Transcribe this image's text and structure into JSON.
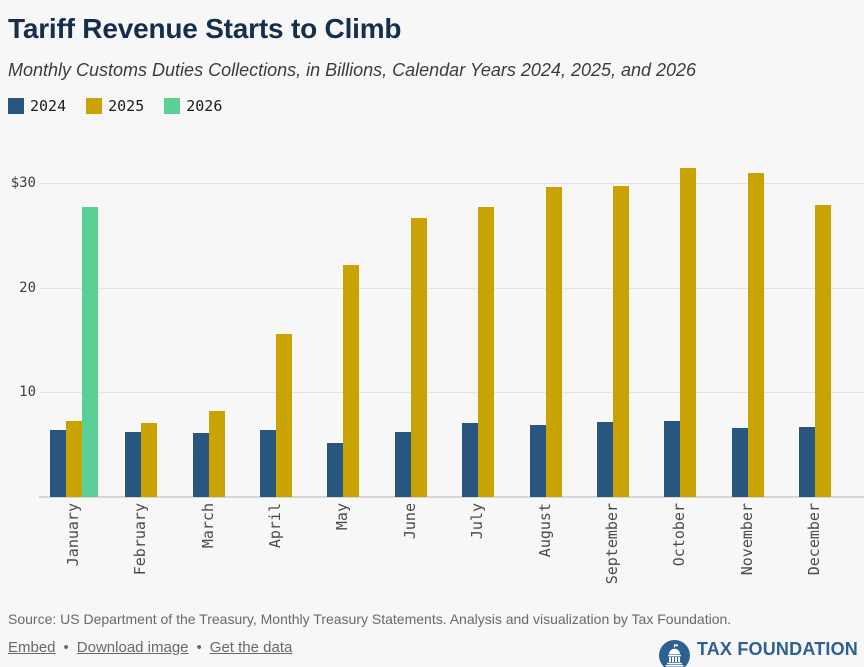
{
  "chart_data": {
    "type": "bar",
    "title": "Tariff Revenue Starts to Climb",
    "subtitle": "Monthly Customs Duties Collections, in Billions, Calendar Years 2024, 2025, and 2026",
    "categories": [
      "January",
      "February",
      "March",
      "April",
      "May",
      "June",
      "July",
      "August",
      "September",
      "October",
      "November",
      "December"
    ],
    "series": [
      {
        "name": "2024",
        "color": "#28567e",
        "values": [
          6.4,
          6.2,
          6.1,
          6.4,
          5.2,
          6.2,
          7.1,
          6.9,
          7.2,
          7.3,
          6.6,
          6.7
        ]
      },
      {
        "name": "2025",
        "color": "#c9a203",
        "values": [
          7.3,
          7.1,
          8.2,
          15.6,
          22.2,
          26.6,
          27.7,
          29.6,
          29.7,
          31.4,
          30.9,
          27.9
        ]
      },
      {
        "name": "2026",
        "color": "#5bd096",
        "values": [
          27.7,
          null,
          null,
          null,
          null,
          null,
          null,
          null,
          null,
          null,
          null,
          null
        ]
      }
    ],
    "yticks": [
      {
        "value": 30,
        "label": "$30"
      },
      {
        "value": 20,
        "label": "20"
      },
      {
        "value": 10,
        "label": "10"
      }
    ],
    "ylim": [
      0,
      32
    ],
    "grid": true,
    "legend_position": "top-left"
  },
  "footer": {
    "source": "Source: US Department of the Treasury, Monthly Treasury Statements. Analysis and visualization by Tax Foundation.",
    "links": [
      {
        "label": "Embed"
      },
      {
        "label": "Download image"
      },
      {
        "label": "Get the data"
      }
    ],
    "separator": "•",
    "brand": {
      "name": "TAX FOUNDATION",
      "color": "#2d6191"
    }
  }
}
